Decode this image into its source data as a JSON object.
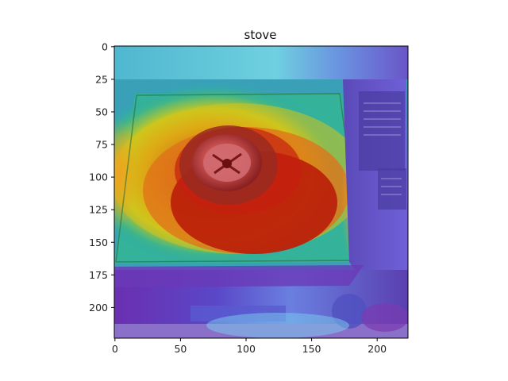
{
  "chart_data": {
    "type": "heatmap",
    "title": "stove",
    "xlabel": "",
    "ylabel": "",
    "xlim": [
      0,
      224
    ],
    "ylim": [
      224,
      0
    ],
    "x_ticks": [
      0,
      50,
      100,
      150,
      200
    ],
    "y_ticks": [
      0,
      25,
      50,
      75,
      100,
      125,
      150,
      175,
      200
    ],
    "overlay": "class activation heatmap over photo of a portable gas stove",
    "colormap": "jet",
    "grid": false
  }
}
